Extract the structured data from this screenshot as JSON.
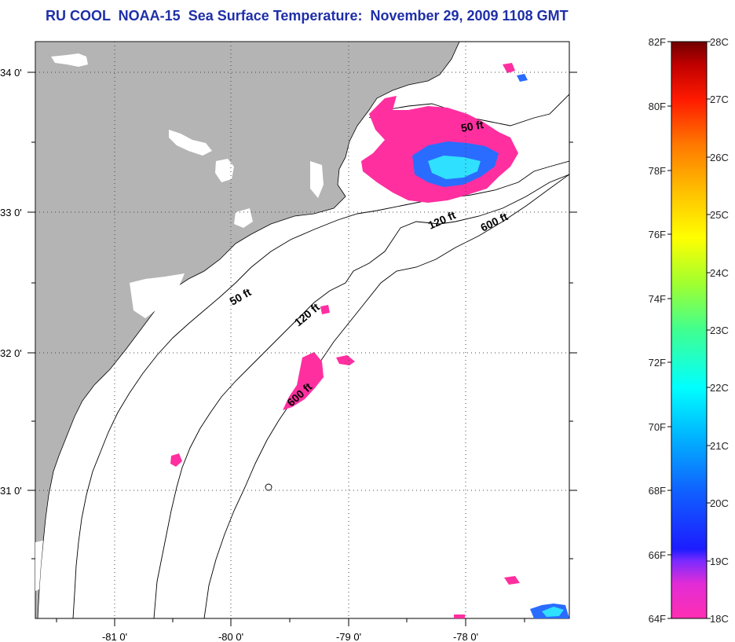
{
  "title": "RU COOL  NOAA-15  Sea Surface Temperature:  November 29, 2009 1108 GMT",
  "map": {
    "latitude_labels": [
      "34 0'",
      "33 0'",
      "32 0'",
      "31 0'"
    ],
    "longitude_labels": [
      "-81 0'",
      "-80 0'",
      "-79 0'",
      "-78 0'"
    ],
    "contour_labels": [
      "50 ft",
      "120 ft",
      "600 ft",
      "50 ft",
      "120 ft",
      "600 ft"
    ],
    "colors": {
      "land": "#b4b4b4",
      "ocean": "#ffffff",
      "cloud_masked": "#ffffff",
      "sst_cold": "#ff2fa0",
      "sst_mid": "#2a6cff",
      "sst_warm": "#30e0ff"
    }
  },
  "colorbar": {
    "fahrenheit_labels": [
      "82F",
      "80F",
      "78F",
      "76F",
      "74F",
      "72F",
      "70F",
      "68F",
      "66F",
      "64F"
    ],
    "celsius_labels": [
      "28C",
      "27C",
      "26C",
      "25C",
      "24C",
      "23C",
      "22C",
      "21C",
      "20C",
      "19C",
      "18C"
    ]
  }
}
